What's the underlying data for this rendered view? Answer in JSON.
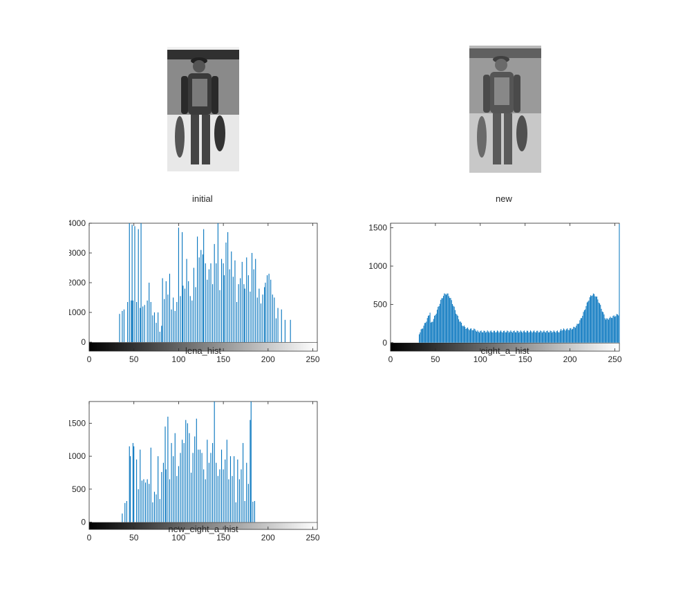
{
  "figure": {
    "images": [
      {
        "caption": "initial",
        "description": "grayscale photo of a person standing on a beach holding fish"
      },
      {
        "caption": "new",
        "description": "same grayscale photo after histogram equalization"
      }
    ]
  },
  "chart_data": [
    {
      "type": "bar",
      "xlabel": "lena_hist",
      "xlim": [
        0,
        255
      ],
      "ylim": [
        -300,
        4000
      ],
      "xticks": [
        0,
        50,
        100,
        150,
        200,
        250
      ],
      "yticks": [
        0,
        1000,
        2000,
        3000,
        4000
      ],
      "colorbar": "grayscale 0-255",
      "grid": false,
      "color": "#0072BD",
      "x": [
        34,
        37,
        39,
        43,
        45,
        47,
        48,
        49,
        51,
        53,
        55,
        57,
        58,
        60,
        62,
        65,
        67,
        69,
        71,
        73,
        75,
        77,
        79,
        81,
        82,
        84,
        86,
        88,
        90,
        92,
        94,
        96,
        98,
        100,
        102,
        104,
        105,
        107,
        109,
        111,
        113,
        115,
        117,
        119,
        121,
        123,
        125,
        127,
        128,
        130,
        132,
        134,
        136,
        138,
        140,
        142,
        144,
        146,
        148,
        150,
        151,
        153,
        155,
        157,
        159,
        161,
        163,
        165,
        167,
        169,
        171,
        173,
        174,
        176,
        178,
        180,
        182,
        184,
        186,
        188,
        190,
        192,
        194,
        196,
        197,
        199,
        201,
        203,
        205,
        207,
        209,
        211,
        215,
        219,
        225
      ],
      "values": [
        950,
        1050,
        1100,
        1350,
        4000,
        1400,
        3950,
        1400,
        3900,
        1350,
        3800,
        1150,
        4000,
        1200,
        1250,
        1400,
        2000,
        1350,
        900,
        1000,
        650,
        1000,
        350,
        550,
        2150,
        1450,
        2050,
        1600,
        2300,
        1100,
        1500,
        1050,
        1350,
        3850,
        1550,
        3700,
        1900,
        1800,
        2800,
        2050,
        1550,
        1400,
        2500,
        1850,
        3550,
        2850,
        3100,
        2950,
        3800,
        2650,
        2100,
        2450,
        2650,
        1950,
        3300,
        2650,
        4000,
        1750,
        2800,
        2650,
        2250,
        3350,
        3700,
        2450,
        3050,
        2200,
        2750,
        1350,
        1950,
        2150,
        2700,
        1950,
        1800,
        2850,
        2250,
        1700,
        3000,
        2450,
        2800,
        1500,
        1800,
        1300,
        1600,
        1850,
        2000,
        2250,
        2300,
        2100,
        1600,
        1500,
        800,
        1150,
        1100,
        750,
        750
      ]
    },
    {
      "type": "bar",
      "xlabel": "eight_a_hist",
      "xlim": [
        0,
        255
      ],
      "ylim": [
        -110,
        1560
      ],
      "xticks": [
        0,
        50,
        100,
        150,
        200,
        250
      ],
      "yticks": [
        0,
        500,
        1000,
        1500
      ],
      "colorbar": "grayscale 0-255",
      "grid": false,
      "color": "#0072BD",
      "shape": "bimodal",
      "x0": 32,
      "x1": 255,
      "peak1": {
        "x": 62,
        "y": 630
      },
      "peak2": {
        "x": 226,
        "y": 640
      },
      "spike": {
        "x": 255,
        "y": 1550
      }
    },
    {
      "type": "bar",
      "xlabel": "new_eight_a_hist",
      "xlim": [
        0,
        255
      ],
      "ylim": [
        -110,
        1830
      ],
      "xticks": [
        0,
        50,
        100,
        150,
        200,
        250
      ],
      "yticks": [
        0,
        500,
        1000,
        1500
      ],
      "colorbar": "grayscale 0-255",
      "grid": false,
      "color": "#0072BD",
      "x": [
        37,
        40,
        42,
        45,
        46,
        49,
        50,
        53,
        55,
        57,
        59,
        61,
        63,
        65,
        67,
        69,
        71,
        73,
        75,
        77,
        79,
        81,
        83,
        85,
        86,
        88,
        90,
        92,
        94,
        96,
        98,
        100,
        102,
        104,
        106,
        108,
        110,
        112,
        114,
        116,
        118,
        120,
        122,
        124,
        126,
        128,
        130,
        132,
        134,
        136,
        138,
        140,
        142,
        144,
        146,
        148,
        150,
        152,
        154,
        156,
        158,
        160,
        162,
        164,
        166,
        168,
        170,
        172,
        174,
        176,
        178,
        180,
        181,
        183,
        185
      ],
      "values": [
        130,
        290,
        320,
        1150,
        1000,
        1200,
        1150,
        950,
        500,
        1100,
        630,
        650,
        600,
        650,
        580,
        1130,
        300,
        460,
        420,
        1000,
        350,
        760,
        900,
        1450,
        800,
        1600,
        650,
        1200,
        1000,
        1350,
        700,
        850,
        1050,
        1250,
        1200,
        1550,
        1500,
        1350,
        750,
        1050,
        1300,
        1570,
        1100,
        1100,
        1050,
        800,
        650,
        1250,
        900,
        1050,
        1200,
        1830,
        900,
        700,
        800,
        1100,
        800,
        950,
        1250,
        650,
        1000,
        700,
        1000,
        300,
        950,
        650,
        800,
        1200,
        320,
        900,
        580,
        1550,
        1830,
        310,
        320
      ]
    }
  ]
}
